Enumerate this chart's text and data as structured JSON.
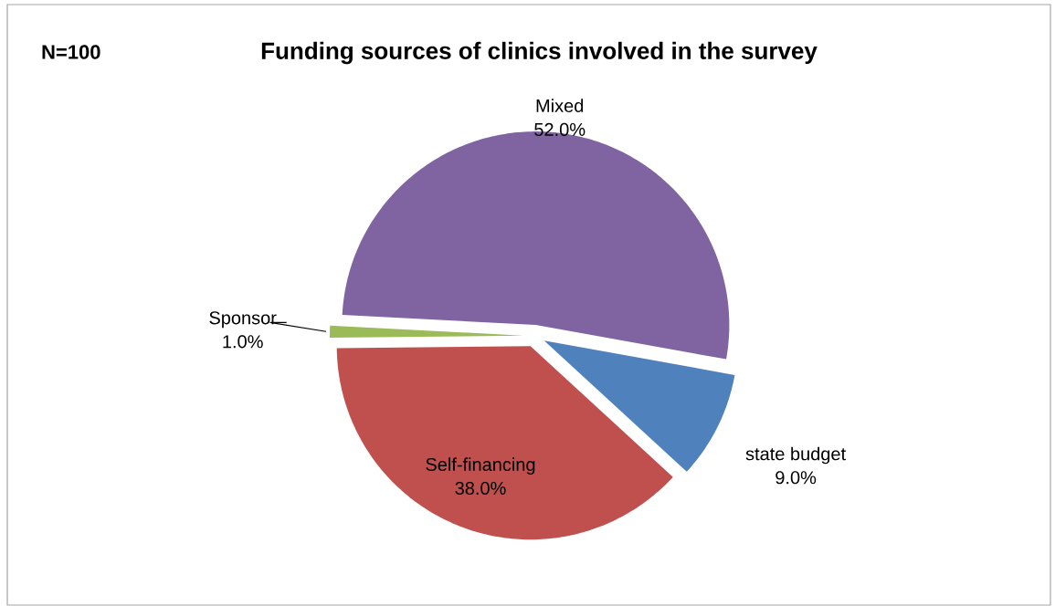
{
  "chart_data": {
    "type": "pie",
    "title": "Funding sources of clinics involved in the survey",
    "annotations": [
      "N=100"
    ],
    "categories": [
      "Mixed",
      "state budget",
      "Self-financing",
      "Sponsor"
    ],
    "values": [
      52,
      9,
      38,
      1
    ],
    "value_labels": [
      "52.0%",
      "9.0%",
      "38.0%",
      "1.0%"
    ],
    "colors": [
      "#8064a2",
      "#4f81bd",
      "#c0504d",
      "#9bbb59"
    ]
  }
}
